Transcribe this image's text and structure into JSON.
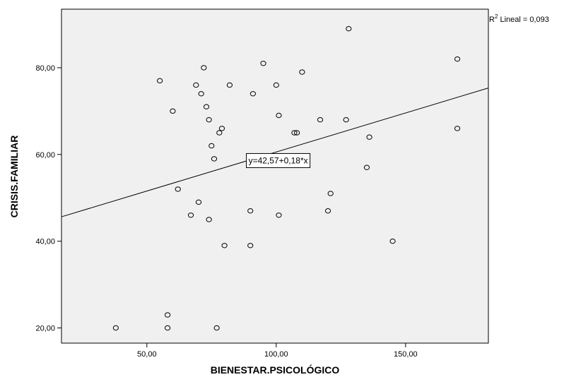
{
  "chart_data": {
    "type": "scatter",
    "xlabel": "BIENESTAR.PSICOLÓGICO",
    "ylabel": "CRISIS.FAMILIAR",
    "xlim": [
      17,
      182
    ],
    "ylim": [
      16.5,
      93.5
    ],
    "xticks": [
      50,
      100,
      150
    ],
    "yticks": [
      20,
      40,
      60,
      80
    ],
    "xtick_labels": [
      "50,00",
      "100,00",
      "150,00"
    ],
    "ytick_labels": [
      "20,00",
      "40,00",
      "60,00",
      "80,00"
    ],
    "grid": false,
    "plot_background": "#f0f0f0",
    "points": [
      {
        "x": 38,
        "y": 20
      },
      {
        "x": 55,
        "y": 77
      },
      {
        "x": 58,
        "y": 23
      },
      {
        "x": 58,
        "y": 20
      },
      {
        "x": 60,
        "y": 70
      },
      {
        "x": 62,
        "y": 52
      },
      {
        "x": 67,
        "y": 46
      },
      {
        "x": 69,
        "y": 76
      },
      {
        "x": 70,
        "y": 49
      },
      {
        "x": 71,
        "y": 74
      },
      {
        "x": 72,
        "y": 80
      },
      {
        "x": 73,
        "y": 71
      },
      {
        "x": 74,
        "y": 68
      },
      {
        "x": 74,
        "y": 45
      },
      {
        "x": 75,
        "y": 62
      },
      {
        "x": 76,
        "y": 59
      },
      {
        "x": 77,
        "y": 20
      },
      {
        "x": 78,
        "y": 65
      },
      {
        "x": 79,
        "y": 66
      },
      {
        "x": 80,
        "y": 39
      },
      {
        "x": 82,
        "y": 76
      },
      {
        "x": 90,
        "y": 47
      },
      {
        "x": 90,
        "y": 39
      },
      {
        "x": 91,
        "y": 74
      },
      {
        "x": 95,
        "y": 81
      },
      {
        "x": 100,
        "y": 76
      },
      {
        "x": 101,
        "y": 69
      },
      {
        "x": 101,
        "y": 46
      },
      {
        "x": 107,
        "y": 65
      },
      {
        "x": 108,
        "y": 65
      },
      {
        "x": 110,
        "y": 79
      },
      {
        "x": 117,
        "y": 68
      },
      {
        "x": 120,
        "y": 47
      },
      {
        "x": 121,
        "y": 51
      },
      {
        "x": 127,
        "y": 68
      },
      {
        "x": 128,
        "y": 89
      },
      {
        "x": 135,
        "y": 57
      },
      {
        "x": 136,
        "y": 64
      },
      {
        "x": 145,
        "y": 40
      },
      {
        "x": 170,
        "y": 82
      },
      {
        "x": 170,
        "y": 66
      }
    ],
    "fit_line": {
      "intercept": 42.57,
      "slope": 0.18
    },
    "fit_equation_label": "y=42,57+0,18*x",
    "fit_equation_x": 89,
    "r2_prefix": "R",
    "r2_sup": "2",
    "r2_label": " Lineal = 0,093"
  }
}
